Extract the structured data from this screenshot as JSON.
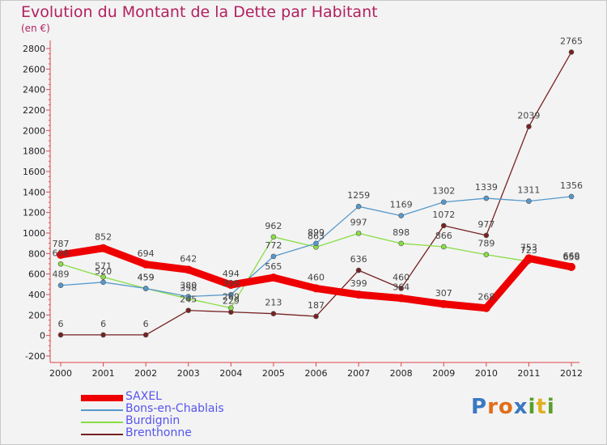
{
  "title": "Evolution du Montant de la Dette par Habitant",
  "subtitle": "(en €)",
  "logo": {
    "letters": [
      "P",
      "r",
      "o",
      "x",
      "i",
      "t",
      "i"
    ],
    "colors": [
      "#3a78c2",
      "#e06e1a",
      "#e06e1a",
      "#3a78c2",
      "#5a9e2a",
      "#e0b020",
      "#5a9e2a"
    ]
  },
  "chart_data": {
    "type": "line",
    "categories": [
      "2000",
      "2001",
      "2002",
      "2003",
      "2004",
      "2005",
      "2006",
      "2007",
      "2008",
      "2009",
      "2010",
      "2011",
      "2012"
    ],
    "ylim": [
      -200,
      2800
    ],
    "yticks": [
      "-200",
      "0",
      "200",
      "400",
      "600",
      "800",
      "1000",
      "1200",
      "1400",
      "1600",
      "1800",
      "2000",
      "2200",
      "2400",
      "2600",
      "2800"
    ],
    "grid": false,
    "legend_position": "bottom-left",
    "series": [
      {
        "name": "SAXEL",
        "color": "#ee0000",
        "values": [
          787,
          852,
          694,
          642,
          494,
          565,
          460,
          399,
          364,
          307,
          268,
          753,
          669
        ],
        "labels": [
          "787",
          "852",
          "694",
          "642",
          "494",
          "565",
          "460",
          "399",
          "364",
          "307",
          "268",
          "753",
          "669"
        ]
      },
      {
        "name": "Bons-en-Chablais",
        "color": "#5599cc",
        "values": [
          489,
          520,
          459,
          380,
          399,
          772,
          899,
          1259,
          1169,
          1302,
          1339,
          1311,
          1356
        ],
        "labels": [
          "489",
          "520",
          "459",
          "380",
          "399",
          "772",
          "899",
          "1259",
          "1169",
          "1302",
          "1339",
          "1311",
          "1356"
        ]
      },
      {
        "name": "Burdignin",
        "color": "#88dd44",
        "values": [
          698,
          571,
          459,
          358,
          269,
          962,
          863,
          997,
          898,
          866,
          789,
          723,
          656
        ],
        "labels": [
          "698",
          "571",
          "459",
          "358",
          "269",
          "962",
          "863",
          "997",
          "898",
          "866",
          "789",
          "723",
          "656"
        ]
      },
      {
        "name": "Brenthonne",
        "color": "#772222",
        "values": [
          6,
          6,
          6,
          245,
          229,
          213,
          187,
          636,
          460,
          1072,
          977,
          2039,
          2765
        ],
        "labels": [
          "6",
          "6",
          "6",
          "245",
          "229",
          "213",
          "187",
          "636",
          "460",
          "1072",
          "977",
          "2039",
          "2765"
        ]
      }
    ]
  }
}
